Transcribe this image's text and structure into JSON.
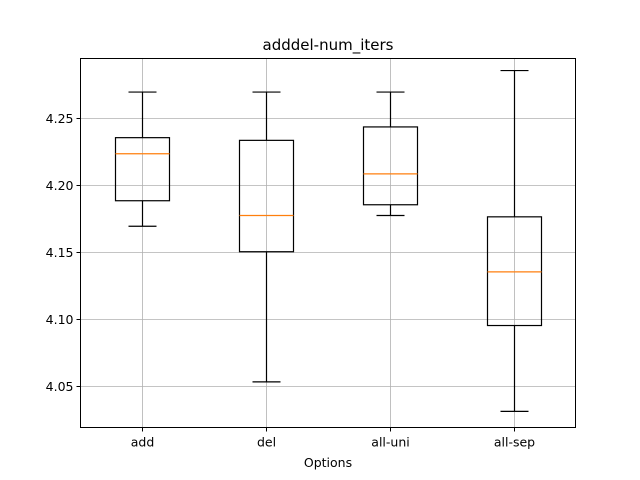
{
  "chart_data": {
    "type": "boxplot",
    "title": "adddel-num_iters",
    "xlabel": "Options",
    "ylabel": "",
    "categories": [
      "add",
      "del",
      "all-uni",
      "all-sep"
    ],
    "ylim": [
      4.019,
      4.294
    ],
    "yticks": [
      4.05,
      4.1,
      4.15,
      4.2,
      4.25
    ],
    "ytick_labels": [
      "4.05",
      "4.10",
      "4.15",
      "4.20",
      "4.25"
    ],
    "grid": true,
    "boxes": [
      {
        "label": "add",
        "whisker_low": 4.169,
        "q1": 4.188,
        "median": 4.223,
        "q3": 4.235,
        "whisker_high": 4.269
      },
      {
        "label": "del",
        "whisker_low": 4.053,
        "q1": 4.15,
        "median": 4.177,
        "q3": 4.233,
        "whisker_high": 4.269
      },
      {
        "label": "all-uni",
        "whisker_low": 4.177,
        "q1": 4.185,
        "median": 4.208,
        "q3": 4.243,
        "whisker_high": 4.269
      },
      {
        "label": "all-sep",
        "whisker_low": 4.031,
        "q1": 4.095,
        "median": 4.135,
        "q3": 4.176,
        "whisker_high": 4.285
      }
    ],
    "colors": {
      "box": "#000000",
      "median": "#ff7f0e",
      "grid": "#b0b0b0"
    }
  }
}
